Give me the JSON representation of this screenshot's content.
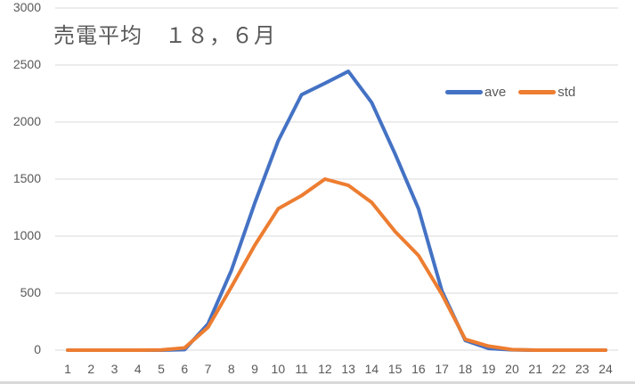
{
  "chart_data": {
    "type": "line",
    "title": "売電平均　１８，６月",
    "xlabel": "",
    "ylabel": "",
    "categories": [
      "1",
      "2",
      "3",
      "4",
      "5",
      "6",
      "7",
      "8",
      "9",
      "10",
      "11",
      "12",
      "13",
      "14",
      "15",
      "16",
      "17",
      "18",
      "19",
      "20",
      "21",
      "22",
      "23",
      "24"
    ],
    "series": [
      {
        "name": "ave",
        "color": "#4472C4",
        "values": [
          0,
          0,
          0,
          0,
          0,
          5,
          230,
          700,
          1290,
          1835,
          2240,
          2340,
          2445,
          2170,
          1720,
          1240,
          520,
          85,
          15,
          3,
          0,
          0,
          0,
          0
        ]
      },
      {
        "name": "std",
        "color": "#ED7D31",
        "values": [
          0,
          0,
          0,
          0,
          2,
          20,
          200,
          555,
          920,
          1240,
          1355,
          1500,
          1445,
          1295,
          1040,
          830,
          490,
          95,
          35,
          5,
          0,
          0,
          0,
          0
        ]
      }
    ],
    "ylim": [
      0,
      3000
    ],
    "yticks": [
      0,
      500,
      1000,
      1500,
      2000,
      2500,
      3000
    ],
    "grid": true,
    "legend_position": "top-right-inside"
  },
  "title": "売電平均　１８，６月",
  "legend": [
    {
      "label": "ave",
      "color": "#4472C4"
    },
    {
      "label": "std",
      "color": "#ED7D31"
    }
  ],
  "yticks": [
    "3000",
    "2500",
    "2000",
    "1500",
    "1000",
    "500",
    "0"
  ],
  "xticks": [
    "1",
    "2",
    "3",
    "4",
    "5",
    "6",
    "7",
    "8",
    "9",
    "10",
    "11",
    "12",
    "13",
    "14",
    "15",
    "16",
    "17",
    "18",
    "19",
    "20",
    "21",
    "22",
    "23",
    "24"
  ]
}
